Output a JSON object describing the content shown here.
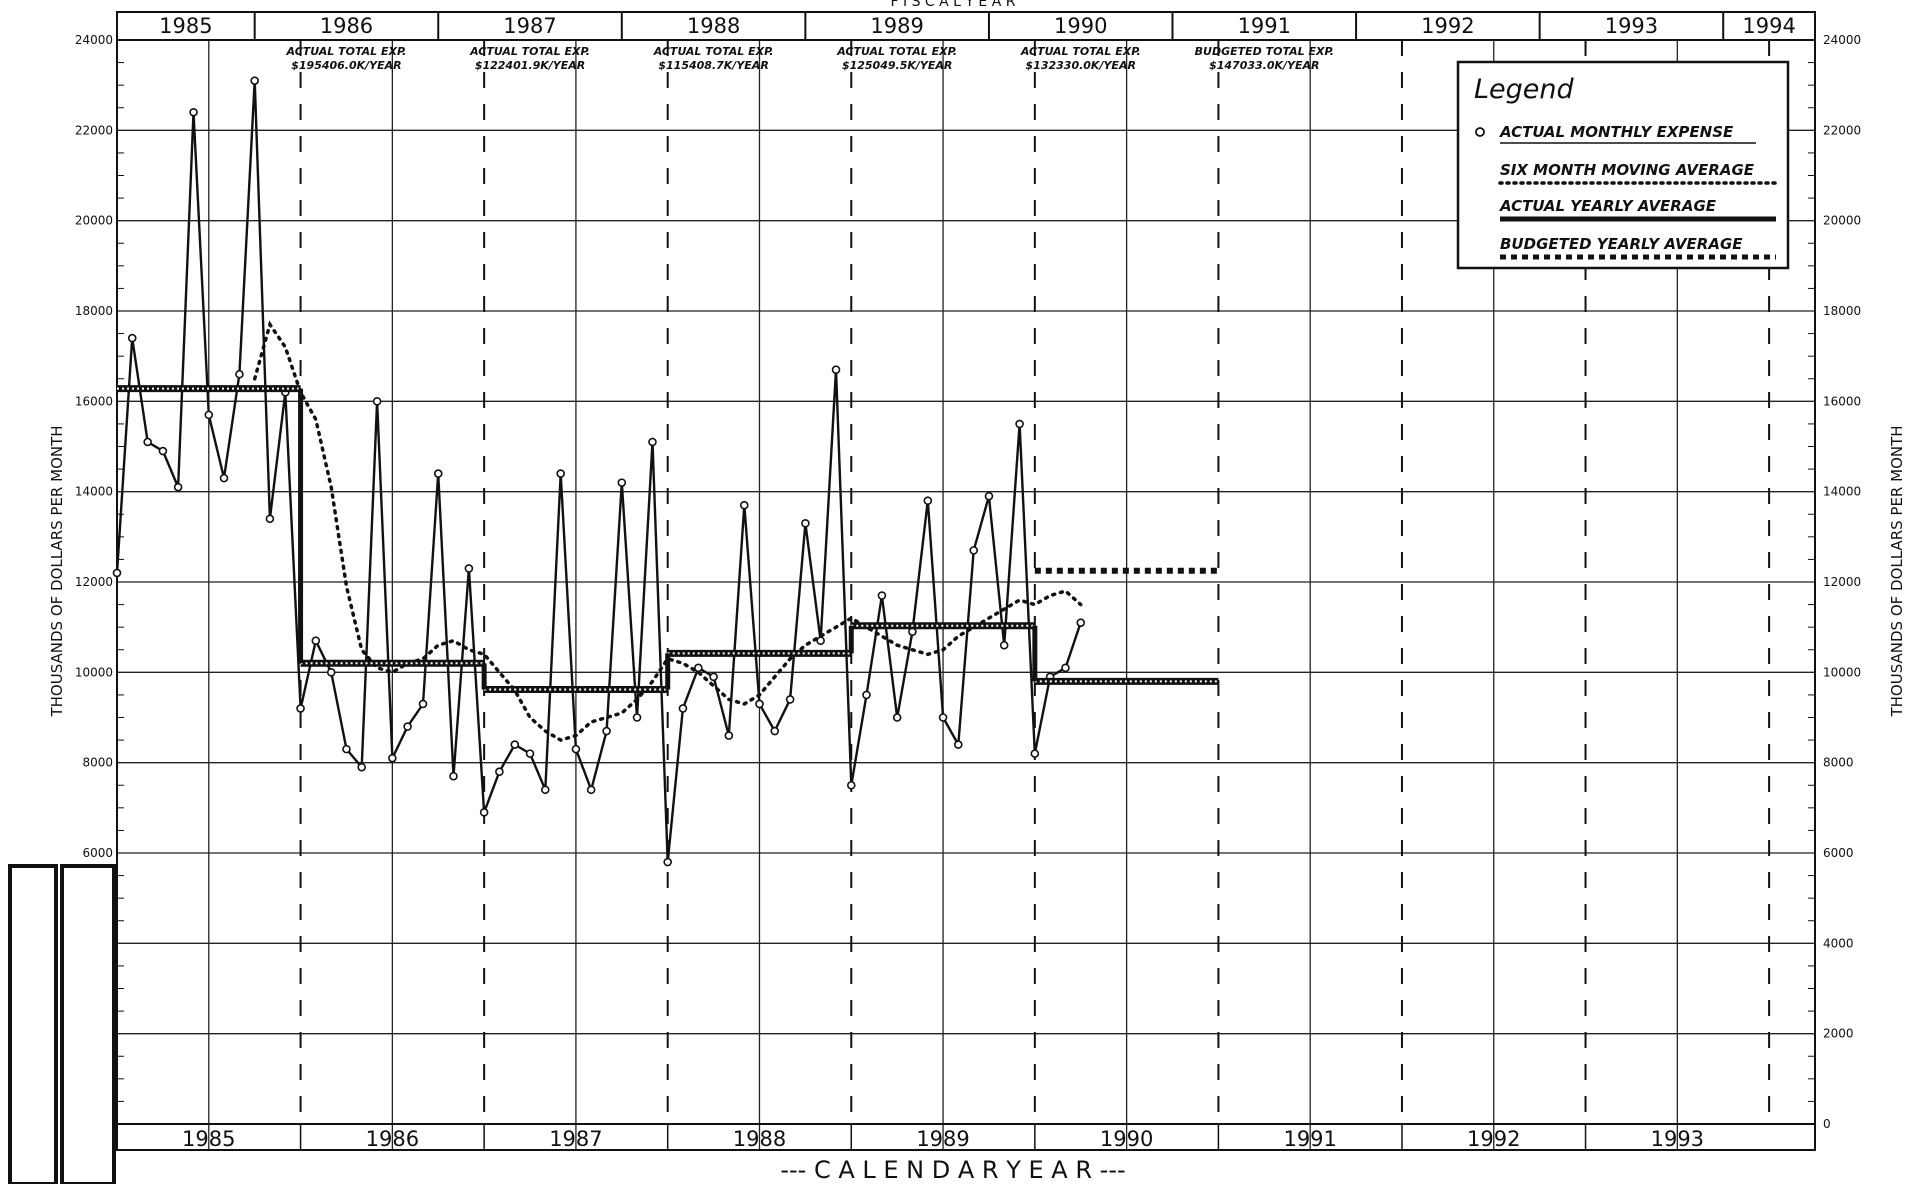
{
  "chart_data": {
    "type": "line",
    "xlabel": "--- C A L E N D A R   Y E A R ---",
    "ylabel": "THOUSANDS OF DOLLARS PER MONTH",
    "ylabel_right": "THOUSANDS OF DOLLARS PER MONTH",
    "ylim": [
      0,
      24000
    ],
    "y_ticks": [
      0,
      2000,
      4000,
      6000,
      8000,
      10000,
      12000,
      14000,
      16000,
      18000,
      20000,
      22000,
      24000
    ],
    "y_tick_labels_left": [
      "",
      "",
      "",
      "6000",
      "8000",
      "10000",
      "12000",
      "14000",
      "16000",
      "18000",
      "20000",
      "22000",
      "24000"
    ],
    "y_tick_labels_right": [
      "0",
      "2000",
      "4000",
      "6000",
      "8000",
      "10000",
      "12000",
      "14000",
      "16000",
      "18000",
      "20000",
      "22000",
      "24000"
    ],
    "top_title_fragment": "F I S C A L   Y E A R",
    "fiscal_year_labels": [
      "1985",
      "1986",
      "1987",
      "1988",
      "1989",
      "1990",
      "1991",
      "1992",
      "1993",
      "1994"
    ],
    "fiscal_year_starts": [
      1985.0,
      1985.75,
      1986.75,
      1987.75,
      1988.75,
      1989.75,
      1990.75,
      1991.75,
      1992.75,
      1993.75
    ],
    "calendar_year_labels": [
      "1985",
      "1986",
      "1987",
      "1988",
      "1989",
      "1990",
      "1991",
      "1992",
      "1993"
    ],
    "grid": true,
    "legend_placement": "top-right",
    "legend_title": "Legend",
    "annotations": [
      {
        "fy": "1986",
        "line1": "ACTUAL TOTAL EXP.",
        "line2": "$195406.0K/YEAR"
      },
      {
        "fy": "1987",
        "line1": "ACTUAL TOTAL EXP.",
        "line2": "$122401.9K/YEAR"
      },
      {
        "fy": "1988",
        "line1": "ACTUAL TOTAL EXP.",
        "line2": "$115408.7K/YEAR"
      },
      {
        "fy": "1989",
        "line1": "ACTUAL TOTAL EXP.",
        "line2": "$125049.5K/YEAR"
      },
      {
        "fy": "1990",
        "line1": "ACTUAL TOTAL EXP.",
        "line2": "$132330.0K/YEAR"
      },
      {
        "fy": "1991",
        "line1": "BUDGETED TOTAL EXP.",
        "line2": "$147033.0K/YEAR"
      }
    ],
    "series": [
      {
        "name": "ACTUAL MONTHLY EXPENSE",
        "style": "solid-markers",
        "x": [
          1985.0,
          1985.083,
          1985.167,
          1985.25,
          1985.333,
          1985.417,
          1985.5,
          1985.583,
          1985.667,
          1985.75,
          1985.833,
          1985.917,
          1986.0,
          1986.083,
          1986.167,
          1986.25,
          1986.333,
          1986.417,
          1986.5,
          1986.583,
          1986.667,
          1986.75,
          1986.833,
          1986.917,
          1987.0,
          1987.083,
          1987.167,
          1987.25,
          1987.333,
          1987.417,
          1987.5,
          1987.583,
          1987.667,
          1987.75,
          1987.833,
          1987.917,
          1988.0,
          1988.083,
          1988.167,
          1988.25,
          1988.333,
          1988.417,
          1988.5,
          1988.583,
          1988.667,
          1988.75,
          1988.833,
          1988.917,
          1989.0,
          1989.083,
          1989.167,
          1989.25,
          1989.333,
          1989.417,
          1989.5,
          1989.583,
          1989.667,
          1989.75,
          1989.833,
          1989.917,
          1990.0,
          1990.083,
          1990.167,
          1990.25
        ],
        "values": [
          12200,
          17400,
          15100,
          14900,
          14100,
          22400,
          15700,
          14300,
          16600,
          23100,
          13400,
          16200,
          9200,
          10700,
          10000,
          8300,
          7900,
          16000,
          8100,
          8800,
          9300,
          14400,
          7700,
          12300,
          6900,
          7800,
          8400,
          8200,
          7400,
          14400,
          8300,
          7400,
          8700,
          14200,
          9000,
          15100,
          5800,
          9200,
          10100,
          9900,
          8600,
          13700,
          9300,
          8700,
          9400,
          13300,
          10700,
          16700,
          7500,
          9500,
          11700,
          9000,
          10900,
          13800,
          9000,
          8400,
          12700,
          13900,
          10600,
          15500,
          8200,
          9900,
          10100,
          11100
        ]
      },
      {
        "name": "SIX MONTH MOVING AVERAGE",
        "style": "dotted",
        "x": [
          1985.75,
          1985.833,
          1985.917,
          1986.0,
          1986.083,
          1986.167,
          1986.25,
          1986.333,
          1986.417,
          1986.5,
          1986.583,
          1986.667,
          1986.75,
          1986.833,
          1986.917,
          1987.0,
          1987.083,
          1987.167,
          1987.25,
          1987.333,
          1987.417,
          1987.5,
          1987.583,
          1987.667,
          1987.75,
          1987.833,
          1987.917,
          1988.0,
          1988.083,
          1988.167,
          1988.25,
          1988.333,
          1988.417,
          1988.5,
          1988.583,
          1988.667,
          1988.75,
          1988.833,
          1988.917,
          1989.0,
          1989.083,
          1989.167,
          1989.25,
          1989.333,
          1989.417,
          1989.5,
          1989.583,
          1989.667,
          1989.75,
          1989.833,
          1989.917,
          1990.0,
          1990.083,
          1990.167,
          1990.25
        ],
        "values": [
          16500,
          17700,
          17200,
          16200,
          15600,
          14100,
          11900,
          10500,
          10100,
          10000,
          10200,
          10300,
          10600,
          10700,
          10500,
          10400,
          10000,
          9600,
          9000,
          8700,
          8500,
          8600,
          8900,
          9000,
          9100,
          9400,
          9800,
          10300,
          10200,
          10000,
          9700,
          9400,
          9300,
          9500,
          9900,
          10300,
          10600,
          10800,
          11000,
          11200,
          11000,
          10800,
          10600,
          10500,
          10400,
          10500,
          10800,
          11000,
          11200,
          11400,
          11600,
          11500,
          11700,
          11800,
          11500
        ]
      },
      {
        "name": "ACTUAL YEARLY AVERAGE",
        "style": "thick-step",
        "segments": [
          {
            "x0": 1985.0,
            "x1": 1986.0,
            "y": 16280
          },
          {
            "x0": 1986.0,
            "x1": 1987.0,
            "y": 10200
          },
          {
            "x0": 1987.0,
            "x1": 1988.0,
            "y": 9620
          },
          {
            "x0": 1988.0,
            "x1": 1989.0,
            "y": 10420
          },
          {
            "x0": 1989.0,
            "x1": 1990.0,
            "y": 11030
          },
          {
            "x0": 1990.0,
            "x1": 1991.0,
            "y": 9800
          }
        ]
      },
      {
        "name": "BUDGETED YEARLY AVERAGE",
        "style": "thick-dotted-step",
        "segments": [
          {
            "x0": 1990.0,
            "x1": 1991.0,
            "y": 12250
          }
        ]
      }
    ]
  }
}
